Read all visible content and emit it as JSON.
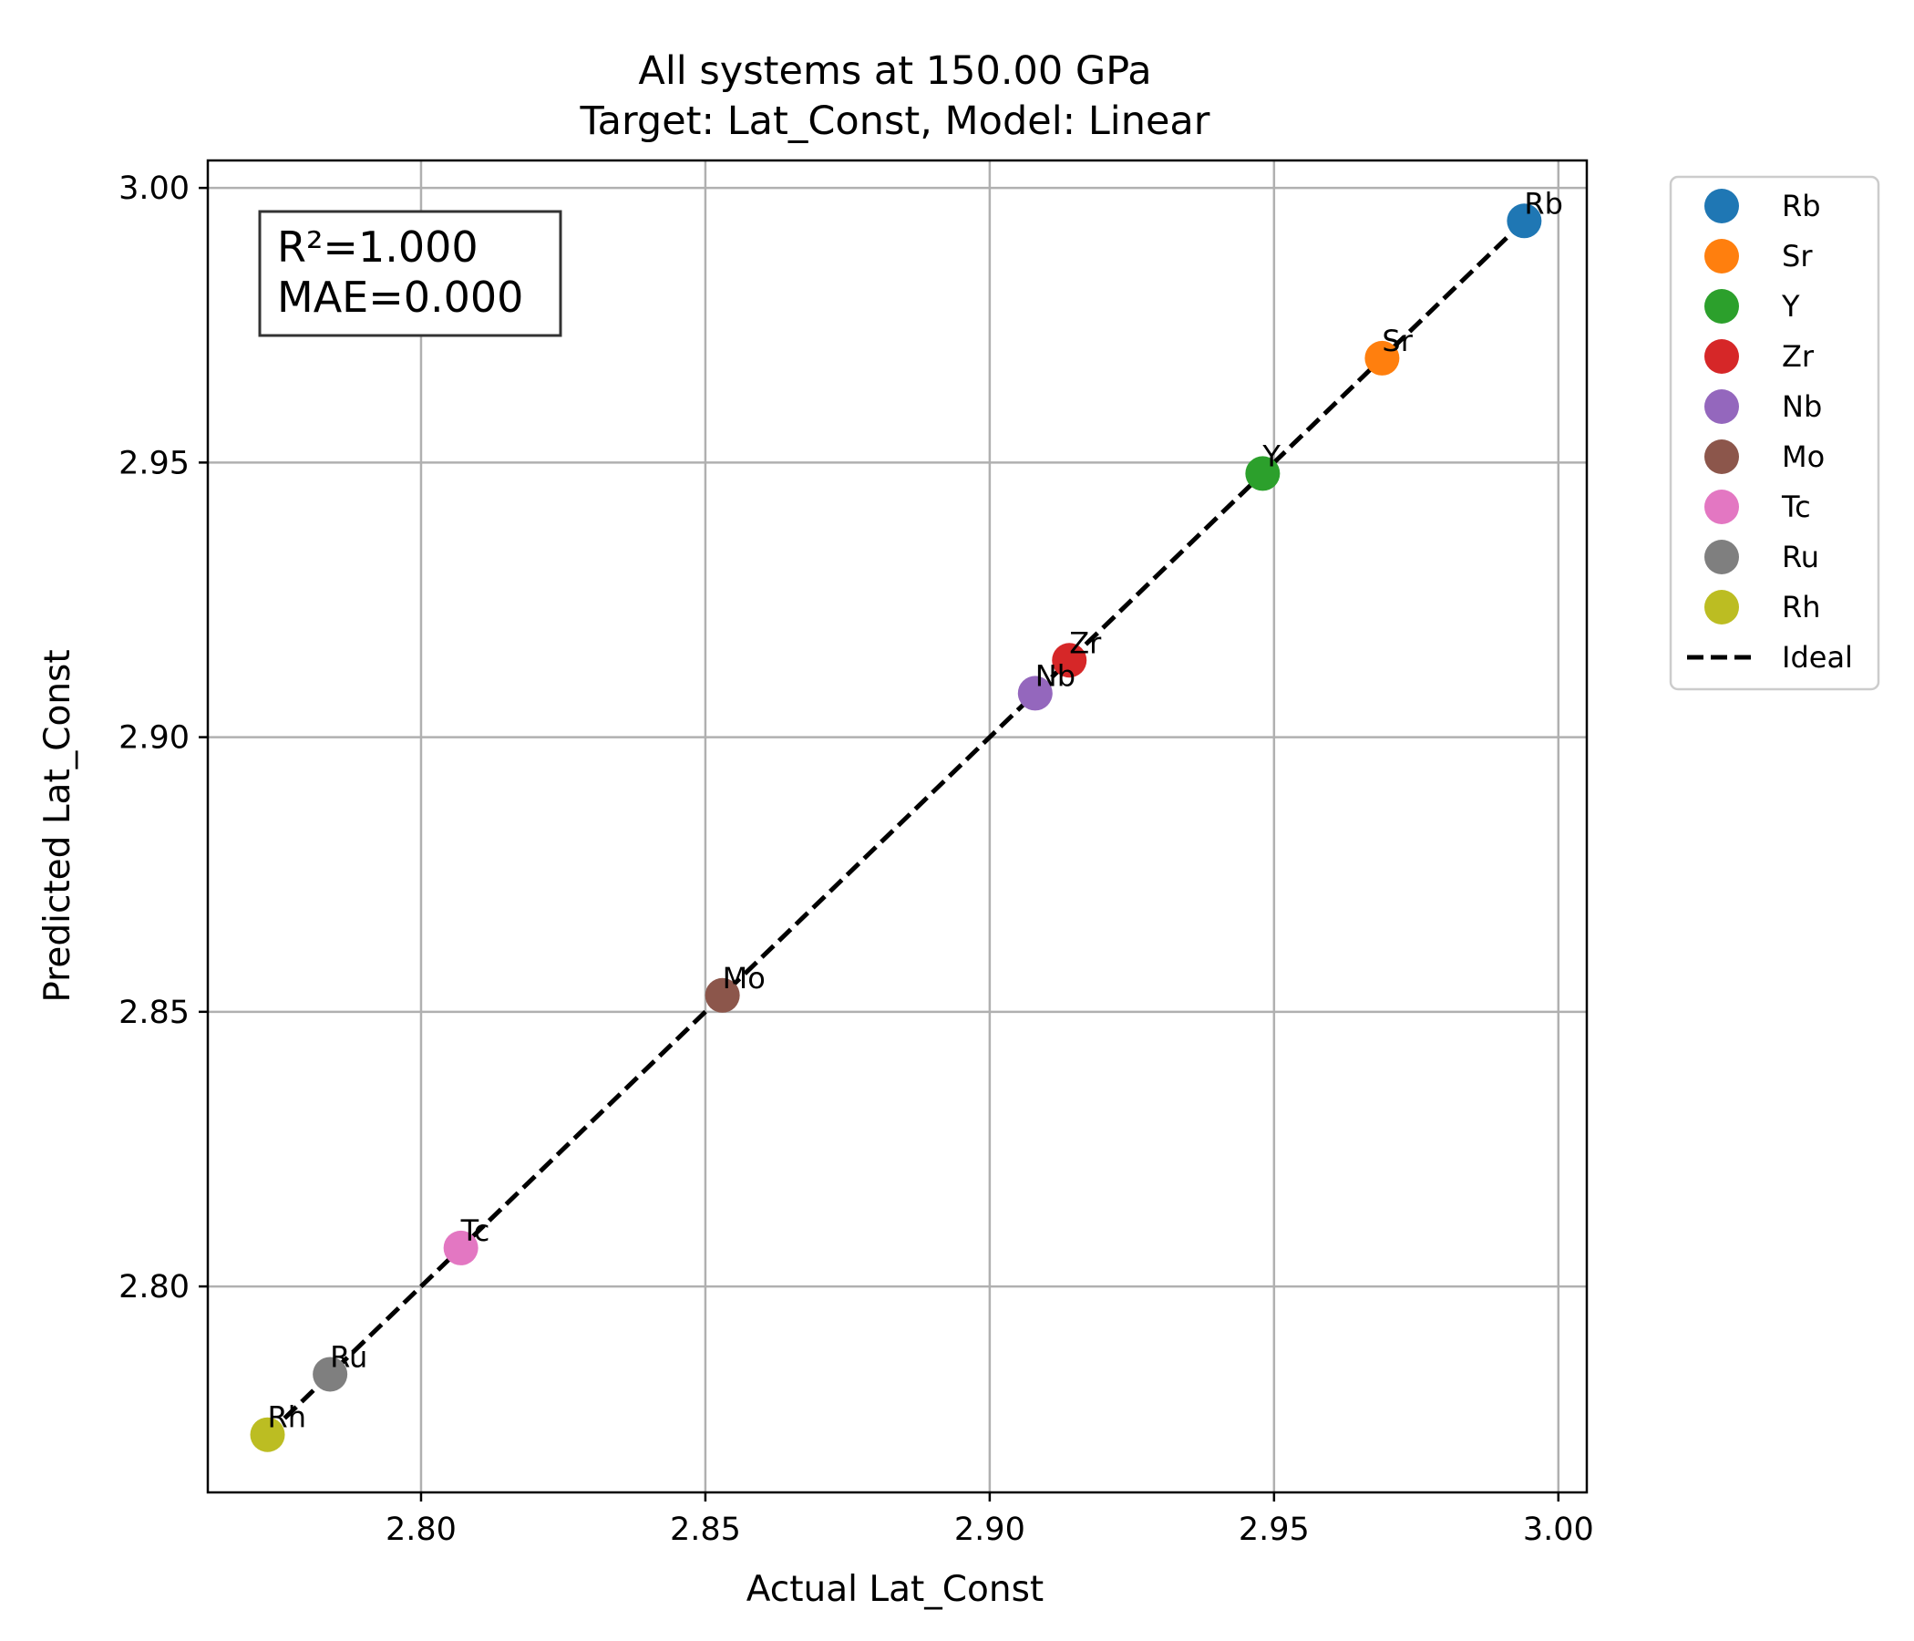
{
  "chart_data": {
    "type": "scatter",
    "title": "All systems at 150.00 GPa",
    "subtitle": "Target: Lat_Const, Model: Linear",
    "xlabel": "Actual Lat_Const",
    "ylabel": "Predicted Lat_Const",
    "xlim": [
      2.7625,
      3.005
    ],
    "ylim": [
      2.7625,
      3.005
    ],
    "x_ticks": [
      "2.80",
      "2.85",
      "2.90",
      "2.95",
      "3.00"
    ],
    "y_ticks": [
      "2.80",
      "2.85",
      "2.90",
      "2.95",
      "3.00"
    ],
    "grid": true,
    "legend_position": "outside-right",
    "stats": {
      "r2": "R²=1.000",
      "mae": "MAE=0.000"
    },
    "series": [
      {
        "name": "Rb",
        "x": 2.994,
        "y": 2.994,
        "color": "#1f77b4"
      },
      {
        "name": "Sr",
        "x": 2.969,
        "y": 2.969,
        "color": "#ff7f0e"
      },
      {
        "name": "Y",
        "x": 2.948,
        "y": 2.948,
        "color": "#2ca02c"
      },
      {
        "name": "Zr",
        "x": 2.914,
        "y": 2.914,
        "color": "#d62728"
      },
      {
        "name": "Nb",
        "x": 2.908,
        "y": 2.908,
        "color": "#9467bd"
      },
      {
        "name": "Mo",
        "x": 2.853,
        "y": 2.853,
        "color": "#8c564b"
      },
      {
        "name": "Tc",
        "x": 2.807,
        "y": 2.807,
        "color": "#e377c2"
      },
      {
        "name": "Ru",
        "x": 2.784,
        "y": 2.784,
        "color": "#7f7f7f"
      },
      {
        "name": "Rh",
        "x": 2.773,
        "y": 2.773,
        "color": "#bcbd22"
      }
    ],
    "ideal_line": {
      "name": "Ideal",
      "x": [
        2.773,
        2.994
      ],
      "y": [
        2.773,
        2.994
      ],
      "style": "dashed",
      "color": "#000000"
    }
  }
}
